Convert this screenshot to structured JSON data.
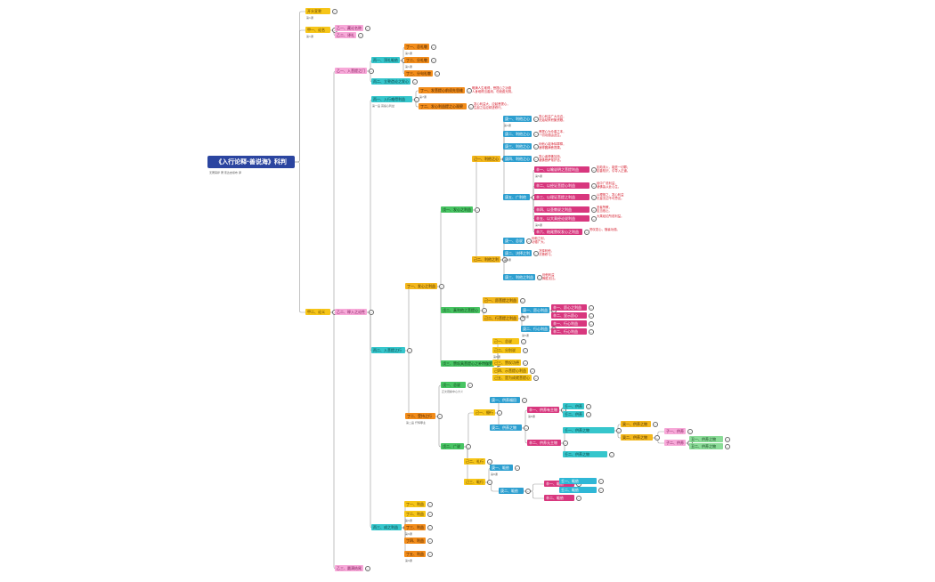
{
  "title": "《入行论释·善说海》科判",
  "title_note": "无著菩萨 著 索达吉堪布 译",
  "colors": {
    "root": "#2b45a0",
    "line": "#9a9a9a",
    "note_text": "#d41a2a",
    "yellow": "#f6c518",
    "pink": "#f7a8d8",
    "orange": "#f28c1a",
    "teal": "#36c6cc",
    "blue": "#2d9fd0",
    "green": "#48c463",
    "magenta": "#d8377e"
  },
  "nodes": [
    {
      "id": "n1",
      "text": "开头宣誓",
      "color": "yellow",
      "sub": "第1课"
    },
    {
      "id": "n2",
      "text": "甲一、论名",
      "color": "yellow",
      "sub": "第1课"
    },
    {
      "id": "n2a",
      "text": "乙一、藏论名称",
      "color": "pink"
    },
    {
      "id": "n2b",
      "text": "乙二、译礼",
      "color": "pink"
    },
    {
      "id": "n3",
      "text": "乙一、入菩提之门",
      "color": "pink"
    },
    {
      "id": "n3a",
      "text": "丙一、顶礼皈依",
      "color": "teal"
    },
    {
      "id": "n3a1",
      "text": "丁一、总礼敬",
      "color": "orange",
      "sub": "第1课"
    },
    {
      "id": "n3a2",
      "text": "丁二、分礼敬",
      "color": "orange",
      "sub": "第1课"
    },
    {
      "id": "n3a3",
      "text": "丁三、分句礼敬",
      "color": "orange"
    },
    {
      "id": "n3b",
      "text": "丙二、立誓造论之发心",
      "color": "teal"
    },
    {
      "id": "n4",
      "text": "甲二、论义",
      "color": "yellow"
    },
    {
      "id": "n5",
      "text": "乙二、释入之论性",
      "color": "pink"
    },
    {
      "id": "n6",
      "text": "丙一、入行难得利益",
      "color": "teal",
      "sub": "第一品 菩提心利益"
    },
    {
      "id": "n6a",
      "text": "丁一、发菩提心前须先思维",
      "color": "orange",
      "sub": "第7课"
    },
    {
      "id": "n6b",
      "text": "丁二、发心利益提之心观察",
      "color": "orange"
    },
    {
      "id": "n7",
      "text": "丙二、入菩提之行",
      "color": "teal"
    },
    {
      "id": "n8",
      "text": "丁一、发心之利益",
      "color": "gold"
    },
    {
      "id": "n8a",
      "text": "戊一、发心之利益",
      "color": "green"
    },
    {
      "id": "n8a1",
      "text": "己一、利他之心",
      "color": "gold"
    },
    {
      "id": "n8a1a",
      "text": "庚一、利他之心",
      "color": "blue",
      "sub": "第4课"
    },
    {
      "id": "n8a1b",
      "text": "庚二、利他之心",
      "color": "blue"
    },
    {
      "id": "n8a1c",
      "text": "庚三、利他之心",
      "color": "blue"
    },
    {
      "id": "n8a1d",
      "text": "庚四、利他之心",
      "color": "blue"
    },
    {
      "id": "n8a1e",
      "text": "庚五、广利他",
      "color": "blue"
    },
    {
      "id": "n8e1",
      "text": "辛一、以喻说明之菩提利益",
      "color": "magenta",
      "sub": "第5课"
    },
    {
      "id": "n8e2",
      "text": "辛二、以经证菩提心利益",
      "color": "magenta"
    },
    {
      "id": "n8e3",
      "text": "辛三、以理证菩提之利益",
      "color": "magenta"
    },
    {
      "id": "n8e4",
      "text": "辛四、以圣教说之利益",
      "color": "magenta"
    },
    {
      "id": "n8e5",
      "text": "辛五、以大乘经论说利益",
      "color": "magenta",
      "sub": "第6课"
    },
    {
      "id": "n8e6",
      "text": "辛六、结尾赞叹发心之利益",
      "color": "magenta"
    },
    {
      "id": "n8a2",
      "text": "己二、利他之利",
      "color": "gold"
    },
    {
      "id": "n8a2a",
      "text": "庚一、总说",
      "color": "blue"
    },
    {
      "id": "n8a2b",
      "text": "庚二、决择之利",
      "color": "blue",
      "sub": "第4课"
    },
    {
      "id": "n8a2c",
      "text": "庚三、利他之利益",
      "color": "blue"
    },
    {
      "id": "n8b",
      "text": "戊二、真利他之菩提心",
      "color": "green"
    },
    {
      "id": "n8b1",
      "text": "己一、愿菩提之利益",
      "color": "gold"
    },
    {
      "id": "n8b2",
      "text": "己二、行菩提之利益",
      "color": "gold"
    },
    {
      "id": "n8b2a",
      "text": "庚一、愿心利益",
      "color": "blue",
      "sub": "第5课"
    },
    {
      "id": "n8b2b",
      "text": "庚二、行心利益",
      "color": "blue",
      "sub": "第5课"
    },
    {
      "id": "n8b2a1",
      "text": "辛一、愿心之利益",
      "color": "magenta"
    },
    {
      "id": "n8b2a2",
      "text": "辛二、显示愿心",
      "color": "magenta"
    },
    {
      "id": "n8b2b1",
      "text": "辛一、行心利益",
      "color": "magenta"
    },
    {
      "id": "n8b2b2",
      "text": "辛二、行心利益",
      "color": "magenta"
    },
    {
      "id": "n8c",
      "text": "戊三、赞叹具菩提心之补特伽罗",
      "color": "green"
    },
    {
      "id": "n8c1",
      "text": "己一、总说",
      "color": "yellow"
    },
    {
      "id": "n8c2",
      "text": "己二、分别说",
      "color": "yellow",
      "sub": "第6课"
    },
    {
      "id": "n8c3",
      "text": "己三、赞叹功德",
      "color": "yellow"
    },
    {
      "id": "n8c4",
      "text": "己四、示菩提心利益",
      "color": "yellow"
    },
    {
      "id": "n8c5",
      "text": "己五、是为成就菩提心",
      "color": "yellow"
    },
    {
      "id": "n9",
      "text": "戊一、总说",
      "color": "green",
      "sub": "正文观察中心大义"
    },
    {
      "id": "n10",
      "text": "丁二、受持之行",
      "color": "orange",
      "sub": "第二品 忏悔罪业"
    },
    {
      "id": "n10a",
      "text": "戊二、广说",
      "color": "green"
    },
    {
      "id": "n10a1",
      "text": "己一、摄行",
      "color": "yellow"
    },
    {
      "id": "n10a1a",
      "text": "庚一、供养福田",
      "color": "blue"
    },
    {
      "id": "n10a1b",
      "text": "庚二、供养之物",
      "color": "blue"
    },
    {
      "id": "n10a1b1",
      "text": "辛一、供养有主物",
      "color": "magenta",
      "sub": "第8课"
    },
    {
      "id": "n10a1b1a",
      "text": "壬一、供养",
      "color": "teal"
    },
    {
      "id": "n10a1b1b",
      "text": "壬二、供养",
      "color": "teal"
    },
    {
      "id": "n10a1b2",
      "text": "辛二、供养无主物",
      "color": "magenta"
    },
    {
      "id": "n10a1b2a",
      "text": "壬一、供养之物",
      "color": "teal"
    },
    {
      "id": "n10a1b2b",
      "text": "壬二、供养之物",
      "color": "teal"
    },
    {
      "id": "n10a1b2a1",
      "text": "癸一、供养之物",
      "color": "gold"
    },
    {
      "id": "n10a1b2a2",
      "text": "癸二、供养之物",
      "color": "gold"
    },
    {
      "id": "n10a1b2a3",
      "text": "子一、供养",
      "color": "pink"
    },
    {
      "id": "n10a1b2a4",
      "text": "子二、供养",
      "color": "pink"
    },
    {
      "id": "n10a1b2a5",
      "text": "丑一、供养之物",
      "color": "lgreen"
    },
    {
      "id": "n10a1b2a6",
      "text": "丑二、供养之物",
      "color": "lgreen"
    },
    {
      "id": "n10a2",
      "text": "己二、礼行",
      "color": "yellow"
    },
    {
      "id": "n10a3",
      "text": "己三、皈行",
      "color": "yellow"
    },
    {
      "id": "n10a3a",
      "text": "庚一、皈依",
      "color": "blue",
      "sub": "第8课"
    },
    {
      "id": "n10a3b",
      "text": "庚二、皈依",
      "color": "blue"
    },
    {
      "id": "n10a3b1",
      "text": "辛一、皈依",
      "color": "magenta"
    },
    {
      "id": "n10a3b2",
      "text": "辛二、皈依",
      "color": "magenta"
    },
    {
      "id": "n10a3b1a",
      "text": "壬一、皈依",
      "color": "lblue"
    },
    {
      "id": "n10a3b1b",
      "text": "壬二、皈依",
      "color": "lblue"
    },
    {
      "id": "n11",
      "text": "丙三、成之利益",
      "color": "teal"
    },
    {
      "id": "n11a",
      "text": "丁一、利益",
      "color": "yellow"
    },
    {
      "id": "n11b",
      "text": "丁二、利益",
      "color": "yellow",
      "sub": "第9课"
    },
    {
      "id": "n11c",
      "text": "丁三、利益",
      "color": "orange",
      "sub": "第9课"
    },
    {
      "id": "n11d",
      "text": "丁四、利益",
      "color": "orange"
    },
    {
      "id": "n11e",
      "text": "丁五、利益",
      "color": "orange",
      "sub": "第9课"
    },
    {
      "id": "n12",
      "text": "乙三、圆满结尾",
      "color": "pink"
    }
  ],
  "notes": {
    "n6a": [
      "暇满人生难得，菩提心之功德",
      "人身难得当善用，勿浪费光阴。"
    ],
    "n6b": [
      "发心利益大，应起菩提心，",
      "生起之后应精进修行。"
    ],
    "n8a1a": [
      "发心利益广大无边，",
      "无始劫来积聚资粮。"
    ],
    "n8a1b": [
      "菩提心为众善之本，",
      "一切功德由此生。"
    ],
    "n8a1c": [
      "利他心能净除罪障，",
      "速得圆满菩提果。"
    ],
    "n8a1d": [
      "发心者得佛加持，",
      "诸佛菩萨常护念。"
    ],
    "n8e1": [
      "如劫末火，能焚一切罪；",
      "如善知识，引导入正道。"
    ],
    "n8e2": [
      "经中广说利益，",
      "诸佛皆从此心生。"
    ],
    "n8e3": [
      "以理推之，发心利益",
      "无量无边不可思议。"
    ],
    "n8e4": [
      "圣者所教，",
      "应当依止。"
    ],
    "n8e5": [
      "大乘经论所说利益。"
    ],
    "n8e6": [
      "赞叹发心，随喜功德。"
    ],
    "n8a2a": [
      "利他之利，",
      "功德广大。"
    ],
    "n8a2b": [
      "决择利他，",
      "次第修习。"
    ],
    "n8a2c": [
      "利他利益",
      "殊胜无比。",
      "",
      "",
      "",
      "",
      "",
      ""
    ]
  }
}
